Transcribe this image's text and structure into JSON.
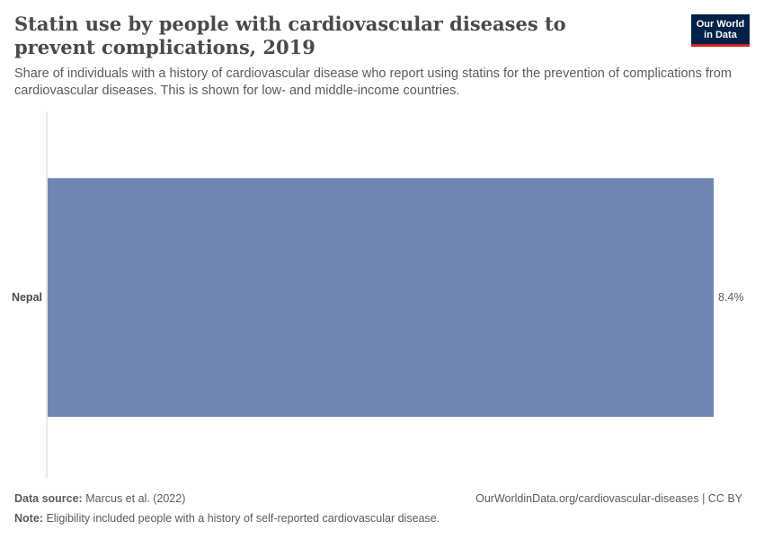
{
  "header": {
    "title": "Statin use by people with cardiovascular diseases to prevent complications, 2019",
    "subtitle": "Share of individuals with a history of cardiovascular disease who report using statins for the prevention of complications from cardiovascular diseases. This is shown for low- and middle-income countries."
  },
  "logo": {
    "line1": "Our World",
    "line2": "in Data"
  },
  "chart_data": {
    "type": "bar",
    "orientation": "horizontal",
    "categories": [
      "Nepal"
    ],
    "values": [
      8.4
    ],
    "value_labels": [
      "8.4%"
    ],
    "bar_color": "#6f87b0",
    "grid": false
  },
  "footer": {
    "source_label": "Data source:",
    "source_value": "Marcus et al. (2022)",
    "url": "OurWorldinData.org/cardiovascular-diseases | CC BY",
    "note_label": "Note:",
    "note_value": "Eligibility included people with a history of self-reported cardiovascular disease."
  }
}
